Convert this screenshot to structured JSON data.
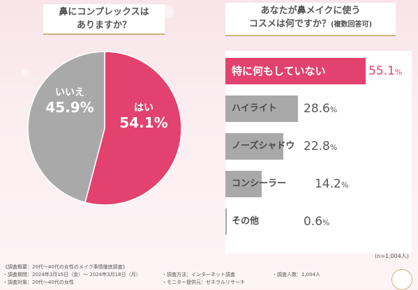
{
  "left_title": {
    "line1": "鼻にコンプレックスは",
    "line2": "ありますか？"
  },
  "right_title": {
    "line1": "あなたが鼻メイクに使う",
    "line2": "コスメは何ですか？",
    "line2_small": "(複数回答可)"
  },
  "chart_data": [
    {
      "type": "pie",
      "title": "鼻にコンプレックスはありますか？",
      "slices": [
        {
          "label": "はい",
          "value": 54.1,
          "display": "54.1%",
          "color": "#e2426d"
        },
        {
          "label": "いいえ",
          "value": 45.9,
          "display": "45.9%",
          "color": "#a9a9a9"
        }
      ]
    },
    {
      "type": "bar",
      "title": "あなたが鼻メイクに使うコスメは何ですか？(複数回答可)",
      "categories": [
        "特に何もしていない",
        "ハイライト",
        "ノーズシャドウ",
        "コンシーラー",
        "その他"
      ],
      "values": [
        55.1,
        28.6,
        22.8,
        14.2,
        0.6
      ],
      "value_labels": [
        "55.1%",
        "28.6%",
        "22.8%",
        "14.2%",
        "0.6%"
      ],
      "highlight_color": "#e2426d",
      "bar_color": "#a9a9a9",
      "xlim": [
        0,
        55.1
      ]
    }
  ],
  "sample_note": "(n=1,004人)",
  "footer": {
    "overview": "《調査概要：20代〜40代の女性のメイク事情徹底調査》",
    "period": "・調査期間：2024年3月15日（金）〜 2024年3月18日（月）",
    "target": "・調査対象：20代〜40代の女性",
    "method": "・調査方法：インターネット調査",
    "provider": "・モニター提供元：ゼネラルリサーチ",
    "count": "・調査人数：1,004人"
  }
}
